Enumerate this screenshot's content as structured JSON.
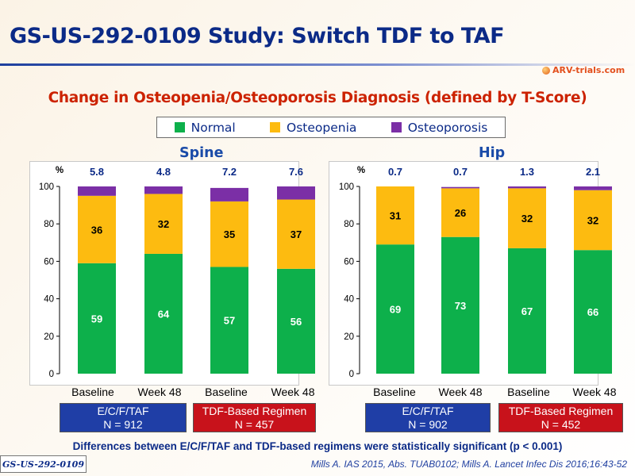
{
  "title": "GS-US-292-0109 Study: Switch TDF to TAF",
  "logo": "ARV-trials.com",
  "subtitle": "Change in Osteopenia/Osteoporosis Diagnosis (defined by T-Score)",
  "legend": [
    {
      "label": "Normal",
      "color": "#0db04b"
    },
    {
      "label": "Osteopenia",
      "color": "#fdbb10"
    },
    {
      "label": "Osteoporosis",
      "color": "#7b2fa6"
    }
  ],
  "chart_data": [
    {
      "type": "bar",
      "stacked": true,
      "title": "Spine",
      "ylabel": "%",
      "ylim": [
        0,
        100
      ],
      "yticks": [
        "0",
        "20",
        "40",
        "60",
        "80",
        "100"
      ],
      "categories": [
        "Baseline",
        "Week 48",
        "Baseline",
        "Week 48"
      ],
      "series": [
        {
          "name": "Normal",
          "values": [
            59,
            64,
            57,
            56
          ]
        },
        {
          "name": "Osteopenia",
          "values": [
            36,
            32,
            35,
            37
          ]
        },
        {
          "name": "Osteoporosis",
          "values": [
            5.8,
            4.8,
            7.2,
            7.6
          ]
        }
      ],
      "groups": [
        {
          "label": "E/C/F/TAF",
          "n": "N = 912",
          "color": "#1f3ea6"
        },
        {
          "label": "TDF-Based Regimen",
          "n": "N = 457",
          "color": "#c8121b"
        }
      ]
    },
    {
      "type": "bar",
      "stacked": true,
      "title": "Hip",
      "ylabel": "%",
      "ylim": [
        0,
        100
      ],
      "yticks": [
        "0",
        "20",
        "40",
        "60",
        "80",
        "100"
      ],
      "categories": [
        "Baseline",
        "Week 48",
        "Baseline",
        "Week 48"
      ],
      "series": [
        {
          "name": "Normal",
          "values": [
            69,
            73,
            67,
            66
          ]
        },
        {
          "name": "Osteopenia",
          "values": [
            31,
            26,
            32,
            32
          ]
        },
        {
          "name": "Osteoporosis",
          "values": [
            0.7,
            0.7,
            1.3,
            2.1
          ]
        }
      ],
      "groups": [
        {
          "label": "E/C/F/TAF",
          "n": "N = 902",
          "color": "#1f3ea6"
        },
        {
          "label": "TDF-Based Regimen",
          "n": "N = 452",
          "color": "#c8121b"
        }
      ]
    }
  ],
  "footnote": "Differences between E/C/F/TAF and TDF-based regimens were statistically significant (p < 0.001)",
  "study_tag": "GS-US-292-0109",
  "citation": "Mills A. IAS 2015, Abs. TUAB0102; Mills A. Lancet Infec Dis 2016;16:43-52"
}
